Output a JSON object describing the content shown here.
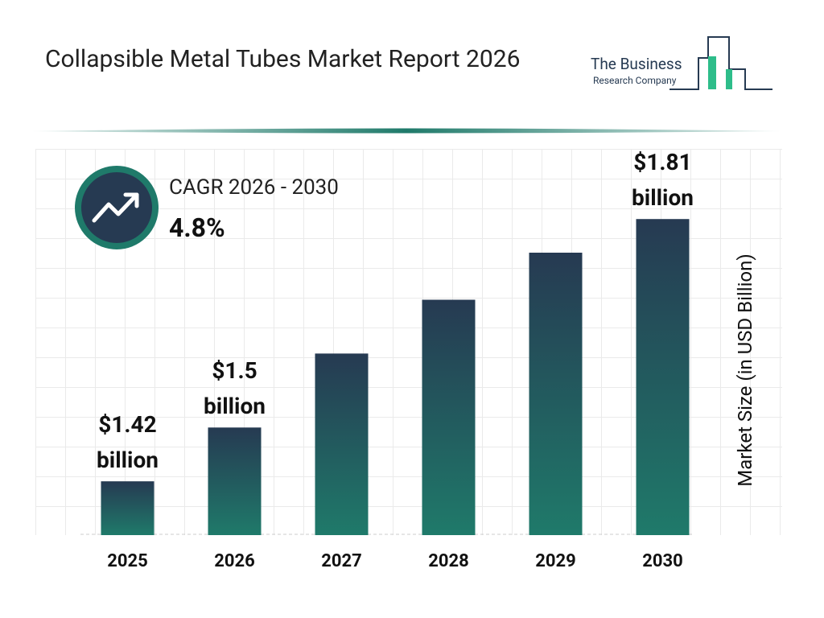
{
  "chart_data": {
    "type": "bar",
    "title": "Collapsible Metal Tubes Market Report 2026",
    "cagr_label": "CAGR 2026 - 2030",
    "cagr_value": "4.8%",
    "y_label": "Market Size (in USD Billion)",
    "categories": [
      "2025",
      "2026",
      "2027",
      "2028",
      "2029",
      "2030"
    ],
    "values": [
      1.42,
      1.5,
      1.61,
      1.69,
      1.76,
      1.81
    ],
    "value_labels": [
      "$1.42 billion",
      "$1.5 billion",
      null,
      null,
      null,
      "$1.81 billion"
    ],
    "colors": [
      "#263a52",
      "#1f7a6a"
    ],
    "ylim": [
      1.34,
      1.9
    ]
  },
  "logo": {
    "line1": "The Business",
    "line2": "Research Company"
  }
}
